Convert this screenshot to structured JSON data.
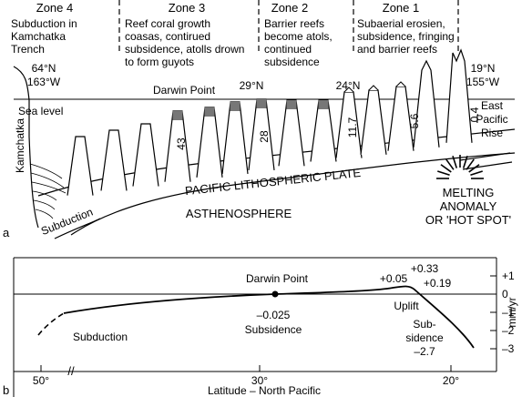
{
  "zones": [
    {
      "title": "Zone 4",
      "lines": [
        "Subduction in",
        "Kamchatka",
        "Trench"
      ]
    },
    {
      "title": "Zone 3",
      "lines": [
        "Reef coral growth",
        "coasas, contirued",
        "subsidence, atolls drown",
        "to form guyots"
      ]
    },
    {
      "title": "Zone 2",
      "lines": [
        "Barrier reefs",
        "become atols,",
        "continued",
        "subsidence"
      ]
    },
    {
      "title": "Zone 1",
      "lines": [
        "Subaerial erosien,",
        "subsidence, fringing",
        "and barrier reefs"
      ]
    }
  ],
  "panel_a": {
    "label": "a",
    "west_lat": "64°N",
    "west_lon": "163°W",
    "east_lat": "19°N",
    "east_lon": "155°W",
    "sea_level": "Sea level",
    "darwin_point": "Darwin Point",
    "lat_29": "29°N",
    "lat_24": "24°N",
    "kamchatka": "Kamchatka",
    "rise": [
      "East",
      "Pacific",
      "Rise"
    ],
    "ages": [
      "43",
      "28",
      "11.7",
      "5.6",
      "0.4"
    ],
    "plate": "PACIFIC LITHOSPHERIC PLATE",
    "subduction": "Subduction",
    "asthenosphere": "ASTHENOSPHERE",
    "hot_spot": [
      "MELTING",
      "ANOMALY",
      "OR 'HOT SPOT'"
    ]
  },
  "panel_b": {
    "label": "b",
    "darwin_point": "Darwin Point",
    "peak_labels": [
      "+0.05",
      "+0.33",
      "+0.19"
    ],
    "uplift": "Uplift",
    "subsidence_rate": "–0.025",
    "subsidence": "Subsidence",
    "sub_sidence": [
      "Sub-",
      "sidence",
      "–2.7"
    ],
    "subduction": "Subduction",
    "y_ticks": [
      "+1",
      "0",
      "–1",
      "–2",
      "–3"
    ],
    "y_unit": "mm/yr",
    "x_ticks": [
      "50°",
      "30°",
      "20°"
    ],
    "x_break": "//",
    "x_label": "Latitude – North Pacific"
  }
}
